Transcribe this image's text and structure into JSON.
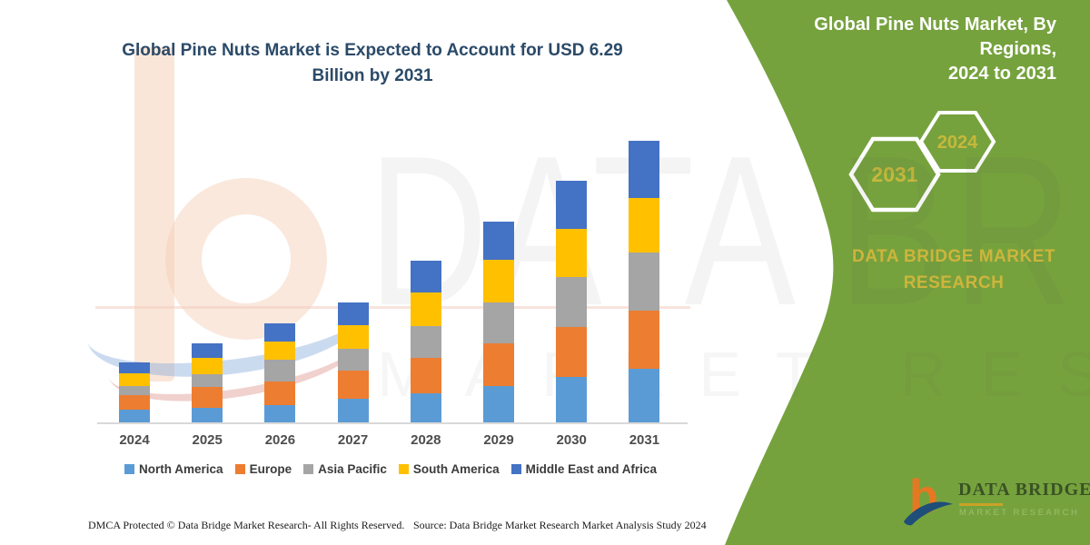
{
  "header": {
    "title_line1": "Global Pine Nuts Market, By Regions,",
    "title_line2": "2024 to 2031"
  },
  "main_title": {
    "line1": "Global Pine Nuts Market is Expected to Account for USD 6.29",
    "line2": "Billion by 2031"
  },
  "badges": {
    "end_year": "2031",
    "start_year": "2024"
  },
  "brand_panel": {
    "name_line1": "DATA BRIDGE MARKET",
    "name_line2": "RESEARCH"
  },
  "logo": {
    "name": "DATA BRIDGE",
    "tagline": "MARKET RESEARCH"
  },
  "watermark": {
    "line1": "DATA BRIDGE",
    "line2": "MARKET RESEARCH"
  },
  "footer": {
    "left": "DMCA Protected © Data Bridge Market Research-  All Rights Reserved.",
    "right": "Source: Data Bridge Market Research  Market Analysis Study 2024"
  },
  "colors": {
    "panel_green": "#76A23E",
    "title_navy": "#2B4A68",
    "gold": "#CDB53C",
    "hex_year_gold": "#C6B83C",
    "axis_gray": "#D9D9D9"
  },
  "chart_data": {
    "type": "bar",
    "stacked": true,
    "title": "Global Pine Nuts Market, By Regions, 2024 to 2031",
    "unit": "USD Billion",
    "categories": [
      "2024",
      "2025",
      "2026",
      "2027",
      "2028",
      "2029",
      "2030",
      "2031"
    ],
    "series": [
      {
        "name": "North America",
        "color": "#5B9BD5",
        "values": [
          0.3,
          0.34,
          0.4,
          0.54,
          0.67,
          0.83,
          1.03,
          1.21
        ]
      },
      {
        "name": "Europe",
        "color": "#ED7D31",
        "values": [
          0.32,
          0.46,
          0.53,
          0.64,
          0.79,
          0.95,
          1.11,
          1.29
        ]
      },
      {
        "name": "Asia Pacific",
        "color": "#A5A5A5",
        "values": [
          0.21,
          0.3,
          0.48,
          0.47,
          0.71,
          0.91,
          1.11,
          1.31
        ]
      },
      {
        "name": "South America",
        "color": "#FFC000",
        "values": [
          0.28,
          0.36,
          0.4,
          0.54,
          0.75,
          0.95,
          1.07,
          1.21
        ]
      },
      {
        "name": "Middle East and Africa",
        "color": "#4472C4",
        "values": [
          0.24,
          0.31,
          0.41,
          0.5,
          0.7,
          0.85,
          1.08,
          1.27
        ]
      }
    ],
    "totals": [
      1.35,
      1.77,
      2.22,
      2.69,
      3.62,
      4.49,
      5.4,
      6.29
    ],
    "ylim": [
      0,
      6.6
    ],
    "grid": false,
    "legend_position": "bottom",
    "value_basis": "values estimated from bar heights; 2031 total anchored to USD 6.29 billion stated in title"
  }
}
